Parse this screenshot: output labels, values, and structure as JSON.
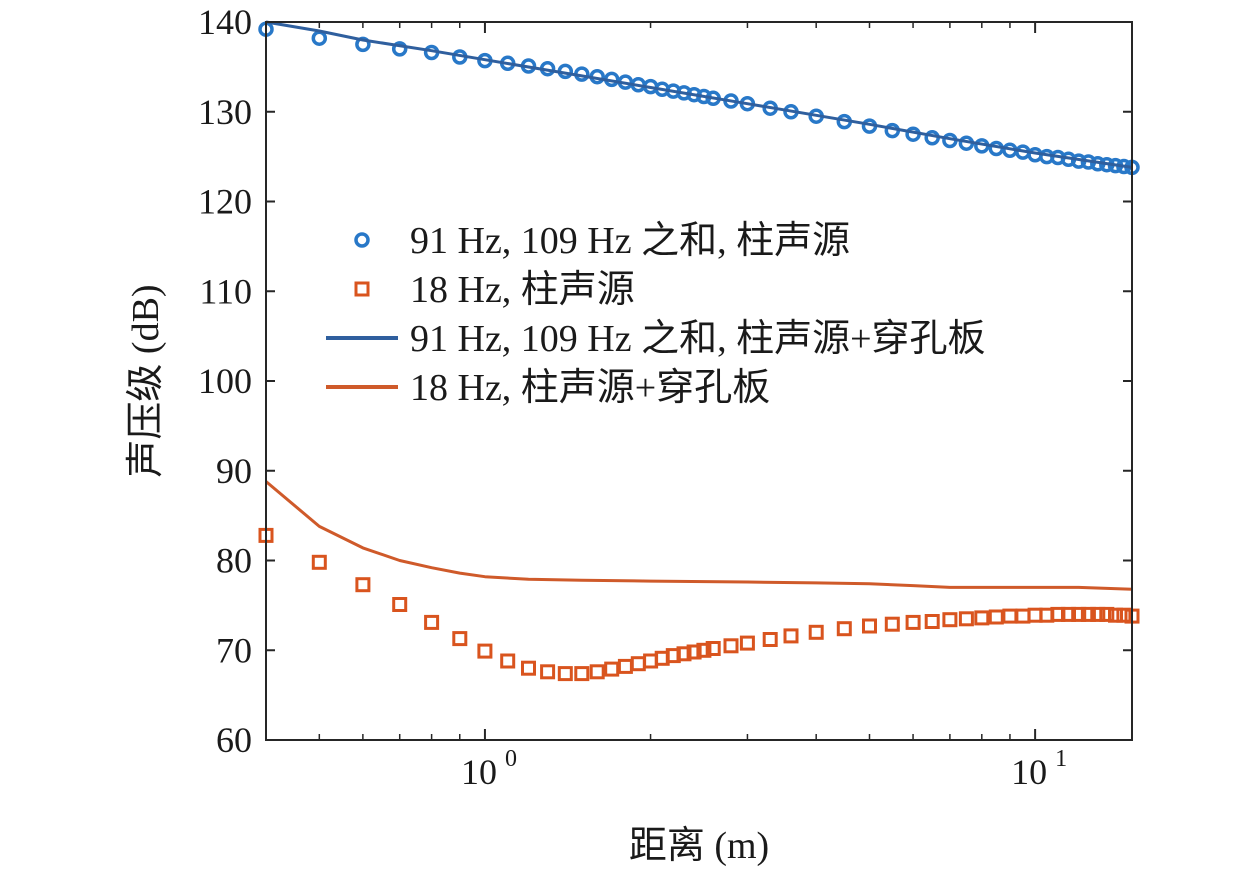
{
  "chart_data": {
    "type": "line",
    "title": "",
    "xlabel": "距离 (m)",
    "ylabel": "声压级 (dB)",
    "xscale": "log",
    "xlim": [
      0.4,
      15
    ],
    "ylim": [
      60,
      140
    ],
    "yticks": [
      "60",
      "70",
      "80",
      "90",
      "100",
      "110",
      "120",
      "130",
      "140"
    ],
    "xticks": [
      {
        "value": 1,
        "base": "10",
        "exp": "0"
      },
      {
        "value": 10,
        "base": "10",
        "exp": "1"
      }
    ],
    "grid": false,
    "legend_position": "center-left",
    "colors": {
      "blue": "#2878c8",
      "orange": "#d9541e",
      "blue_line": "#2f5f9e",
      "orange_line": "#cf5a2a"
    },
    "series": [
      {
        "name": "91 Hz, 109 Hz 之和, 柱声源",
        "style": "circle",
        "color": "#2878c8",
        "x": [
          0.4,
          0.5,
          0.6,
          0.7,
          0.8,
          0.9,
          1.0,
          1.1,
          1.2,
          1.3,
          1.4,
          1.5,
          1.6,
          1.7,
          1.8,
          1.9,
          2.0,
          2.1,
          2.2,
          2.3,
          2.4,
          2.5,
          2.6,
          2.8,
          3.0,
          3.3,
          3.6,
          4.0,
          4.5,
          5.0,
          5.5,
          6.0,
          6.5,
          7.0,
          7.5,
          8.0,
          8.5,
          9.0,
          9.5,
          10.0,
          10.5,
          11.0,
          11.5,
          12.0,
          12.5,
          13.0,
          13.5,
          14.0,
          14.5,
          15.0
        ],
        "y": [
          139.2,
          138.2,
          137.5,
          137.0,
          136.6,
          136.1,
          135.7,
          135.4,
          135.1,
          134.8,
          134.5,
          134.2,
          133.9,
          133.6,
          133.3,
          133.0,
          132.8,
          132.5,
          132.3,
          132.1,
          131.9,
          131.7,
          131.5,
          131.2,
          130.9,
          130.4,
          130.0,
          129.5,
          128.9,
          128.4,
          127.9,
          127.5,
          127.1,
          126.8,
          126.5,
          126.2,
          125.9,
          125.7,
          125.5,
          125.2,
          125.0,
          124.9,
          124.7,
          124.5,
          124.4,
          124.2,
          124.1,
          124.0,
          123.9,
          123.8
        ]
      },
      {
        "name": "18 Hz, 柱声源",
        "style": "square",
        "color": "#d9541e",
        "x": [
          0.4,
          0.5,
          0.6,
          0.7,
          0.8,
          0.9,
          1.0,
          1.1,
          1.2,
          1.3,
          1.4,
          1.5,
          1.6,
          1.7,
          1.8,
          1.9,
          2.0,
          2.1,
          2.2,
          2.3,
          2.4,
          2.5,
          2.6,
          2.8,
          3.0,
          3.3,
          3.6,
          4.0,
          4.5,
          5.0,
          5.5,
          6.0,
          6.5,
          7.0,
          7.5,
          8.0,
          8.5,
          9.0,
          9.5,
          10.0,
          10.5,
          11.0,
          11.5,
          12.0,
          12.5,
          13.0,
          13.5,
          14.0,
          14.5,
          15.0
        ],
        "y": [
          82.8,
          79.8,
          77.3,
          75.1,
          73.1,
          71.3,
          69.9,
          68.8,
          68.0,
          67.6,
          67.4,
          67.4,
          67.6,
          67.9,
          68.2,
          68.5,
          68.8,
          69.1,
          69.4,
          69.6,
          69.8,
          70.0,
          70.2,
          70.5,
          70.8,
          71.2,
          71.6,
          72.0,
          72.4,
          72.7,
          72.9,
          73.1,
          73.2,
          73.4,
          73.5,
          73.6,
          73.7,
          73.8,
          73.8,
          73.9,
          73.9,
          74.0,
          74.0,
          74.0,
          74.0,
          74.0,
          74.0,
          73.9,
          73.9,
          73.8
        ]
      },
      {
        "name": "91 Hz, 109 Hz 之和, 柱声源+穿孔板",
        "style": "line",
        "color": "#2f5f9e",
        "x": [
          0.4,
          0.5,
          0.6,
          0.8,
          1.0,
          1.5,
          2.0,
          3.0,
          4.0,
          5.0,
          7.0,
          10.0,
          15.0
        ],
        "y": [
          140.0,
          139.0,
          138.0,
          136.8,
          135.8,
          134.0,
          132.7,
          130.9,
          129.6,
          128.6,
          127.0,
          125.4,
          123.8
        ]
      },
      {
        "name": "18 Hz, 柱声源+穿孔板",
        "style": "line",
        "color": "#cf5a2a",
        "x": [
          0.4,
          0.5,
          0.6,
          0.7,
          0.8,
          0.9,
          1.0,
          1.2,
          1.5,
          2.0,
          3.0,
          4.0,
          5.0,
          6.0,
          7.0,
          8.0,
          10.0,
          12.0,
          15.0
        ],
        "y": [
          88.8,
          83.8,
          81.4,
          80.0,
          79.2,
          78.6,
          78.2,
          77.9,
          77.8,
          77.7,
          77.6,
          77.5,
          77.4,
          77.2,
          77.0,
          77.0,
          77.0,
          77.0,
          76.8
        ]
      }
    ]
  }
}
